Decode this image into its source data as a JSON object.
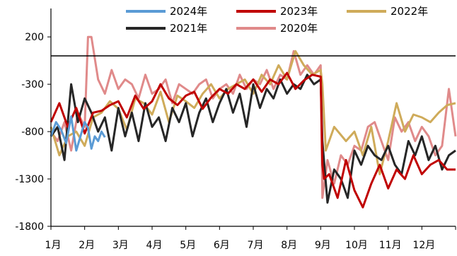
{
  "chart_data": {
    "type": "line",
    "title": "",
    "xlabel": "",
    "ylabel": "",
    "x_tick_labels": [
      "1月",
      "2月",
      "3月",
      "4月",
      "5月",
      "6月",
      "7月",
      "8月",
      "9月",
      "10月",
      "11月",
      "12月"
    ],
    "y_ticks": [
      200,
      -300,
      -800,
      -1300,
      -1800
    ],
    "ylim": [
      -1800,
      500
    ],
    "xlim": [
      0,
      12
    ],
    "legend_position": "top",
    "series": [
      {
        "name": "2024年",
        "color": "#5b9bd5",
        "x": [
          0.0,
          0.15,
          0.3,
          0.45,
          0.6,
          0.75,
          0.9,
          1.0,
          1.1,
          1.2,
          1.3,
          1.4,
          1.5,
          1.6
        ],
        "y": [
          -850,
          -700,
          -780,
          -920,
          -640,
          -1000,
          -820,
          -700,
          -760,
          -980,
          -850,
          -900,
          -800,
          -860
        ]
      },
      {
        "name": "2023年",
        "color": "#c00000",
        "x": [
          0.0,
          0.25,
          0.5,
          0.75,
          1.0,
          1.25,
          1.5,
          1.75,
          2.0,
          2.25,
          2.5,
          2.75,
          3.0,
          3.25,
          3.5,
          3.75,
          4.0,
          4.25,
          4.5,
          4.75,
          5.0,
          5.25,
          5.5,
          5.75,
          6.0,
          6.25,
          6.5,
          6.75,
          7.0,
          7.25,
          7.5,
          7.75,
          8.0,
          8.05,
          8.1,
          8.25,
          8.5,
          8.75,
          9.0,
          9.25,
          9.5,
          9.75,
          10.0,
          10.25,
          10.5,
          10.75,
          11.0,
          11.25,
          11.5,
          11.75,
          12.0
        ],
        "y": [
          -700,
          -500,
          -750,
          -550,
          -820,
          -600,
          -580,
          -520,
          -480,
          -650,
          -420,
          -560,
          -480,
          -300,
          -450,
          -520,
          -420,
          -380,
          -560,
          -440,
          -350,
          -400,
          -300,
          -350,
          -250,
          -380,
          -250,
          -300,
          -180,
          -350,
          -260,
          -200,
          -220,
          -1150,
          -1300,
          -1250,
          -1500,
          -1100,
          -1420,
          -1600,
          -1350,
          -1150,
          -1400,
          -1200,
          -1300,
          -1050,
          -1250,
          -1150,
          -1100,
          -1200,
          -1200
        ]
      },
      {
        "name": "2022年",
        "color": "#cfab5a",
        "x": [
          0.0,
          0.25,
          0.5,
          0.75,
          1.0,
          1.25,
          1.5,
          1.75,
          2.0,
          2.25,
          2.5,
          2.75,
          3.0,
          3.25,
          3.5,
          3.75,
          4.0,
          4.25,
          4.5,
          4.75,
          5.0,
          5.25,
          5.5,
          5.75,
          6.0,
          6.25,
          6.5,
          6.75,
          7.0,
          7.25,
          7.5,
          7.75,
          8.0,
          8.05,
          8.15,
          8.4,
          8.75,
          9.0,
          9.25,
          9.5,
          9.75,
          10.0,
          10.25,
          10.5,
          10.75,
          11.0,
          11.25,
          11.5,
          11.75,
          12.0
        ],
        "y": [
          -750,
          -1050,
          -850,
          -800,
          -950,
          -650,
          -600,
          -480,
          -560,
          -780,
          -450,
          -500,
          -620,
          -380,
          -700,
          -420,
          -480,
          -550,
          -400,
          -300,
          -450,
          -350,
          -300,
          -250,
          -400,
          -200,
          -300,
          -100,
          -250,
          50,
          -100,
          -200,
          -150,
          -300,
          -1000,
          -750,
          -900,
          -800,
          -1050,
          -750,
          -1250,
          -900,
          -500,
          -800,
          -620,
          -650,
          -700,
          -600,
          -520,
          -500
        ]
      },
      {
        "name": "2021年",
        "color": "#262626",
        "x": [
          0.0,
          0.2,
          0.4,
          0.6,
          0.8,
          1.0,
          1.2,
          1.4,
          1.6,
          1.8,
          2.0,
          2.2,
          2.4,
          2.6,
          2.8,
          3.0,
          3.2,
          3.4,
          3.6,
          3.8,
          4.0,
          4.2,
          4.4,
          4.6,
          4.8,
          5.0,
          5.2,
          5.4,
          5.6,
          5.8,
          6.0,
          6.2,
          6.4,
          6.6,
          6.8,
          7.0,
          7.2,
          7.4,
          7.6,
          7.8,
          8.0,
          8.05,
          8.2,
          8.4,
          8.6,
          8.8,
          9.0,
          9.2,
          9.4,
          9.6,
          9.8,
          10.0,
          10.2,
          10.4,
          10.6,
          10.8,
          11.0,
          11.2,
          11.4,
          11.6,
          11.8,
          12.0
        ],
        "y": [
          -850,
          -750,
          -1100,
          -300,
          -700,
          -450,
          -600,
          -800,
          -650,
          -1000,
          -550,
          -850,
          -600,
          -900,
          -500,
          -750,
          -650,
          -900,
          -550,
          -700,
          -500,
          -850,
          -600,
          -450,
          -700,
          -500,
          -350,
          -600,
          -400,
          -750,
          -300,
          -550,
          -350,
          -450,
          -250,
          -400,
          -300,
          -350,
          -200,
          -300,
          -250,
          -900,
          -1550,
          -1200,
          -1300,
          -1500,
          -1000,
          -1150,
          -950,
          -1050,
          -1100,
          -950,
          -1150,
          -1250,
          -900,
          -1050,
          -850,
          -1100,
          -950,
          -1200,
          -1050,
          -1000
        ]
      },
      {
        "name": "2020年",
        "color": "#e08a8a",
        "x": [
          0.0,
          0.2,
          0.4,
          0.6,
          0.8,
          1.0,
          1.1,
          1.2,
          1.4,
          1.6,
          1.8,
          2.0,
          2.2,
          2.4,
          2.6,
          2.8,
          3.0,
          3.2,
          3.4,
          3.6,
          3.8,
          4.0,
          4.2,
          4.4,
          4.6,
          4.8,
          5.0,
          5.2,
          5.4,
          5.6,
          5.8,
          6.0,
          6.2,
          6.4,
          6.6,
          6.8,
          7.0,
          7.2,
          7.4,
          7.6,
          7.8,
          8.0,
          8.05,
          8.2,
          8.4,
          8.6,
          8.8,
          9.0,
          9.2,
          9.4,
          9.6,
          9.8,
          10.0,
          10.2,
          10.4,
          10.6,
          10.8,
          11.0,
          11.2,
          11.4,
          11.6,
          11.8,
          12.0
        ],
        "y": [
          -800,
          -900,
          -700,
          -1000,
          -600,
          -750,
          200,
          200,
          -250,
          -400,
          -150,
          -350,
          -250,
          -300,
          -450,
          -200,
          -400,
          -350,
          -250,
          -500,
          -300,
          -350,
          -400,
          -300,
          -250,
          -450,
          -350,
          -300,
          -400,
          -200,
          -350,
          -250,
          -300,
          -150,
          -350,
          -200,
          -250,
          50,
          -200,
          -100,
          -200,
          -100,
          -1500,
          -1100,
          -1350,
          -1050,
          -1150,
          -950,
          -1000,
          -750,
          -700,
          -900,
          -1100,
          -650,
          -800,
          -700,
          -900,
          -750,
          -850,
          -1050,
          -950,
          -350,
          -850
        ]
      }
    ]
  }
}
